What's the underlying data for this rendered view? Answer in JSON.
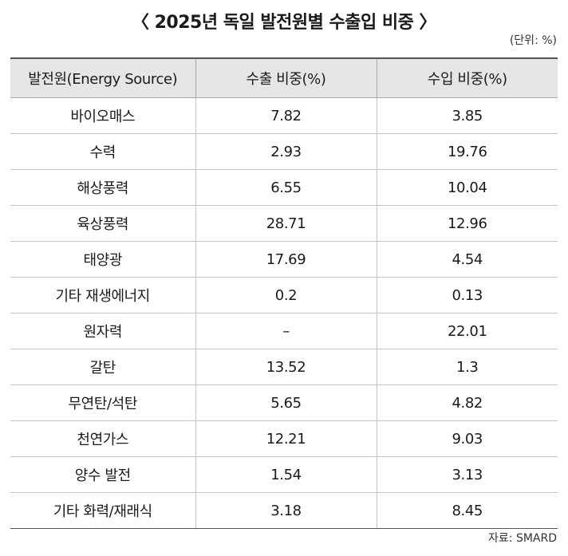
{
  "title": "〈 2025년 독일 발전원별 수출입 비중 〉",
  "unit": "(단위: %)",
  "table": {
    "headers": [
      "발전원(Energy Source)",
      "수출 비중(%)",
      "수입 비중(%)"
    ],
    "rows": [
      [
        "바이오매스",
        "7.82",
        "3.85"
      ],
      [
        "수력",
        "2.93",
        "19.76"
      ],
      [
        "해상풍력",
        "6.55",
        "10.04"
      ],
      [
        "육상풍력",
        "28.71",
        "12.96"
      ],
      [
        "태양광",
        "17.69",
        "4.54"
      ],
      [
        "기타 재생에너지",
        "0.2",
        "0.13"
      ],
      [
        "원자력",
        "–",
        "22.01"
      ],
      [
        "갈탄",
        "13.52",
        "1.3"
      ],
      [
        "무연탄/석탄",
        "5.65",
        "4.82"
      ],
      [
        "천연가스",
        "12.21",
        "9.03"
      ],
      [
        "양수 발전",
        "1.54",
        "3.13"
      ],
      [
        "기타 화력/재래식",
        "3.18",
        "8.45"
      ]
    ]
  },
  "source": "자료: SMARD"
}
